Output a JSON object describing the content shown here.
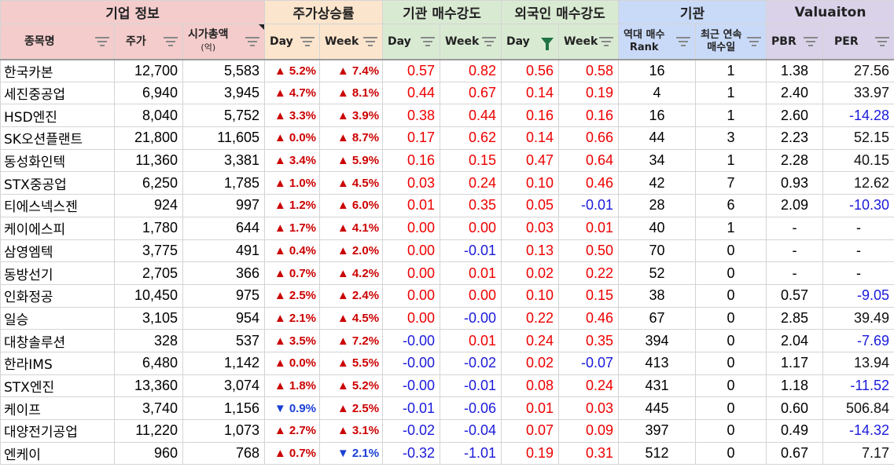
{
  "groups": [
    "기업 정보",
    "주가상승률",
    "기관 매수강도",
    "외국인 매수강도",
    "기관",
    "Valuaiton"
  ],
  "headers": {
    "name": "종목명",
    "price": "주가",
    "mcap": "시가총액",
    "mcap_unit": "(억)",
    "rise_day": "Day",
    "rise_week": "Week",
    "inst_day": "Day",
    "inst_week": "Week",
    "for_day": "Day",
    "for_week": "Week",
    "rank_l1": "역대 매수",
    "rank_l2": "Rank",
    "streak_l1": "최근 연속",
    "streak_l2": "매수일",
    "pbr": "PBR",
    "per": "PER"
  },
  "rows": [
    {
      "name": "한국카본",
      "price": "12,700",
      "mcap": "5,583",
      "day": "▲ 5.2%",
      "week": "▲ 7.4%",
      "inst_d": "0.57",
      "inst_w": "0.82",
      "for_d": "0.56",
      "for_w": "0.58",
      "rank": "16",
      "streak": "1",
      "pbr": "1.38",
      "per": "27.56"
    },
    {
      "name": "세진중공업",
      "price": "6,940",
      "mcap": "3,945",
      "day": "▲ 4.7%",
      "week": "▲ 8.1%",
      "inst_d": "0.44",
      "inst_w": "0.67",
      "for_d": "0.14",
      "for_w": "0.19",
      "rank": "4",
      "streak": "1",
      "pbr": "2.40",
      "per": "33.97"
    },
    {
      "name": "HSD엔진",
      "price": "8,040",
      "mcap": "5,752",
      "day": "▲ 3.3%",
      "week": "▲ 3.9%",
      "inst_d": "0.38",
      "inst_w": "0.44",
      "for_d": "0.16",
      "for_w": "0.16",
      "rank": "16",
      "streak": "1",
      "pbr": "2.60",
      "per": "-14.28"
    },
    {
      "name": "SK오션플랜트",
      "price": "21,800",
      "mcap": "11,605",
      "day": "▲ 0.0%",
      "week": "▲ 8.7%",
      "inst_d": "0.17",
      "inst_w": "0.62",
      "for_d": "0.14",
      "for_w": "0.66",
      "rank": "44",
      "streak": "3",
      "pbr": "2.23",
      "per": "52.15"
    },
    {
      "name": "동성화인텍",
      "price": "11,360",
      "mcap": "3,381",
      "day": "▲ 3.4%",
      "week": "▲ 5.9%",
      "inst_d": "0.16",
      "inst_w": "0.15",
      "for_d": "0.47",
      "for_w": "0.64",
      "rank": "34",
      "streak": "1",
      "pbr": "2.28",
      "per": "40.15"
    },
    {
      "name": "STX중공업",
      "price": "6,250",
      "mcap": "1,785",
      "day": "▲ 1.0%",
      "week": "▲ 4.5%",
      "inst_d": "0.03",
      "inst_w": "0.24",
      "for_d": "0.10",
      "for_w": "0.46",
      "rank": "42",
      "streak": "7",
      "pbr": "0.93",
      "per": "12.62"
    },
    {
      "name": "티에스넥스젠",
      "price": "924",
      "mcap": "997",
      "day": "▲ 1.2%",
      "week": "▲ 6.0%",
      "inst_d": "0.01",
      "inst_w": "0.35",
      "for_d": "0.05",
      "for_w": "-0.01",
      "rank": "28",
      "streak": "6",
      "pbr": "2.09",
      "per": "-10.30"
    },
    {
      "name": "케이에스피",
      "price": "1,780",
      "mcap": "644",
      "day": "▲ 1.7%",
      "week": "▲ 4.1%",
      "inst_d": "0.00",
      "inst_w": "0.00",
      "for_d": "0.03",
      "for_w": "0.01",
      "rank": "40",
      "streak": "1",
      "pbr": "-",
      "per": "-"
    },
    {
      "name": "삼영엠텍",
      "price": "3,775",
      "mcap": "491",
      "day": "▲ 0.4%",
      "week": "▲ 2.0%",
      "inst_d": "0.00",
      "inst_w": "-0.01",
      "for_d": "0.13",
      "for_w": "0.50",
      "rank": "70",
      "streak": "0",
      "pbr": "-",
      "per": "-"
    },
    {
      "name": "동방선기",
      "price": "2,705",
      "mcap": "366",
      "day": "▲ 0.7%",
      "week": "▲ 4.2%",
      "inst_d": "0.00",
      "inst_w": "0.01",
      "for_d": "0.02",
      "for_w": "0.22",
      "rank": "52",
      "streak": "0",
      "pbr": "-",
      "per": "-"
    },
    {
      "name": "인화정공",
      "price": "10,450",
      "mcap": "975",
      "day": "▲ 2.5%",
      "week": "▲ 2.4%",
      "inst_d": "0.00",
      "inst_w": "0.00",
      "for_d": "0.10",
      "for_w": "0.15",
      "rank": "38",
      "streak": "0",
      "pbr": "0.57",
      "per": "-9.05"
    },
    {
      "name": "일승",
      "price": "3,105",
      "mcap": "954",
      "day": "▲ 2.1%",
      "week": "▲ 4.5%",
      "inst_d": "0.00",
      "inst_w": "-0.00",
      "for_d": "0.22",
      "for_w": "0.46",
      "rank": "67",
      "streak": "0",
      "pbr": "2.85",
      "per": "39.49"
    },
    {
      "name": "대창솔루션",
      "price": "328",
      "mcap": "537",
      "day": "▲ 3.5%",
      "week": "▲ 7.2%",
      "inst_d": "-0.00",
      "inst_w": "0.01",
      "for_d": "0.24",
      "for_w": "0.35",
      "rank": "394",
      "streak": "0",
      "pbr": "2.04",
      "per": "-7.69"
    },
    {
      "name": "한라IMS",
      "price": "6,480",
      "mcap": "1,142",
      "day": "▲ 0.0%",
      "week": "▲ 5.5%",
      "inst_d": "-0.00",
      "inst_w": "-0.02",
      "for_d": "0.02",
      "for_w": "-0.07",
      "rank": "413",
      "streak": "0",
      "pbr": "1.17",
      "per": "13.94"
    },
    {
      "name": "STX엔진",
      "price": "13,360",
      "mcap": "3,074",
      "day": "▲ 1.8%",
      "week": "▲ 5.2%",
      "inst_d": "-0.00",
      "inst_w": "-0.01",
      "for_d": "0.08",
      "for_w": "0.24",
      "rank": "431",
      "streak": "0",
      "pbr": "1.18",
      "per": "-11.52"
    },
    {
      "name": "케이프",
      "price": "3,740",
      "mcap": "1,156",
      "day": "▼ 0.9%",
      "week": "▲ 2.5%",
      "inst_d": "-0.01",
      "inst_w": "-0.06",
      "for_d": "0.01",
      "for_w": "0.03",
      "rank": "445",
      "streak": "0",
      "pbr": "0.60",
      "per": "506.84"
    },
    {
      "name": "대양전기공업",
      "price": "11,220",
      "mcap": "1,073",
      "day": "▲ 2.7%",
      "week": "▲ 3.1%",
      "inst_d": "-0.02",
      "inst_w": "-0.04",
      "for_d": "0.07",
      "for_w": "0.09",
      "rank": "397",
      "streak": "0",
      "pbr": "0.49",
      "per": "-14.32"
    },
    {
      "name": "엔케이",
      "price": "960",
      "mcap": "768",
      "day": "▲ 0.7%",
      "week": "▼ 2.1%",
      "inst_d": "-0.32",
      "inst_w": "-1.01",
      "for_d": "0.19",
      "for_w": "0.31",
      "rank": "512",
      "streak": "0",
      "pbr": "0.67",
      "per": "7.17"
    }
  ]
}
